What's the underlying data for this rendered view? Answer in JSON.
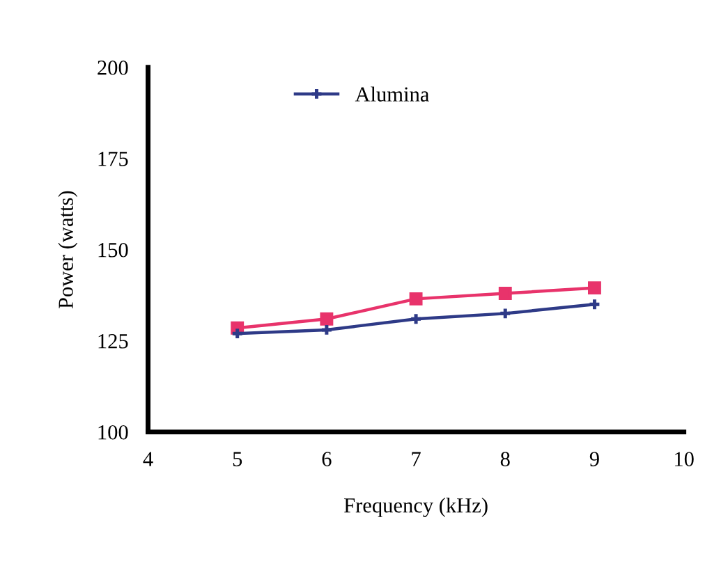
{
  "chart_data": {
    "type": "line",
    "xlabel": "Frequency (kHz)",
    "ylabel": "Power (watts)",
    "x": [
      5,
      6,
      7,
      8,
      9
    ],
    "series": [
      {
        "name": "Alumina",
        "color": "#2e3a87",
        "marker": "cross",
        "values": [
          127,
          128,
          131,
          132.5,
          135
        ]
      },
      {
        "color": "#e8336b",
        "marker": "square",
        "values": [
          128.5,
          131,
          136.5,
          138,
          139.5
        ]
      }
    ],
    "xlim": [
      4,
      10
    ],
    "xticks": [
      4,
      5,
      6,
      7,
      8,
      9,
      10
    ],
    "ylim": [
      100,
      200
    ],
    "yticks": [
      100,
      125,
      150,
      175,
      200
    ],
    "grid": false,
    "legend": "top",
    "line_style": "solid"
  }
}
